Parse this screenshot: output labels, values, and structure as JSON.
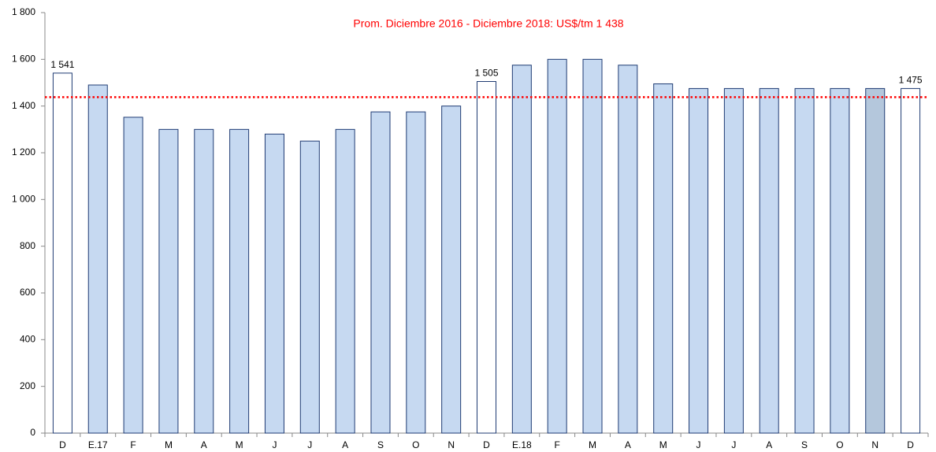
{
  "chart_data": {
    "type": "bar",
    "title": "Prom. Diciembre 2016 - Diciembre 2018: US$/tm 1 438",
    "title_color": "#ff0000",
    "average": 1438,
    "average_color": "#ff0000",
    "categories": [
      "D",
      "E.17",
      "F",
      "M",
      "A",
      "M",
      "J",
      "J",
      "A",
      "S",
      "O",
      "N",
      "D",
      "E.18",
      "F",
      "M",
      "A",
      "M",
      "J",
      "J",
      "A",
      "S",
      "O",
      "N",
      "D"
    ],
    "values": [
      1541,
      1490,
      1352,
      1300,
      1300,
      1300,
      1280,
      1250,
      1300,
      1375,
      1375,
      1400,
      1505,
      1575,
      1600,
      1600,
      1575,
      1495,
      1475,
      1475,
      1475,
      1475,
      1475,
      1475,
      1475
    ],
    "value_labels": [
      "1 541",
      null,
      null,
      null,
      null,
      null,
      null,
      null,
      null,
      null,
      null,
      null,
      "1 505",
      null,
      null,
      null,
      null,
      null,
      null,
      null,
      null,
      null,
      null,
      null,
      "1 475"
    ],
    "colors": [
      "#ffffff",
      "#c6d9f1",
      "#c6d9f1",
      "#c6d9f1",
      "#c6d9f1",
      "#c6d9f1",
      "#c6d9f1",
      "#c6d9f1",
      "#c6d9f1",
      "#c6d9f1",
      "#c6d9f1",
      "#c6d9f1",
      "#ffffff",
      "#c6d9f1",
      "#c6d9f1",
      "#c6d9f1",
      "#c6d9f1",
      "#c6d9f1",
      "#c6d9f1",
      "#c6d9f1",
      "#c6d9f1",
      "#c6d9f1",
      "#c6d9f1",
      "#b4c7dc",
      "#ffffff"
    ],
    "edge_color": "#1f3b73",
    "ylim": [
      0,
      1800
    ],
    "yticks": [
      0,
      200,
      400,
      600,
      800,
      {
        "value": 1000,
        "label": "1 000"
      },
      {
        "value": 1200,
        "label": "1 200"
      },
      {
        "value": 1400,
        "label": "1 400"
      },
      {
        "value": 1600,
        "label": "1 600"
      },
      {
        "value": 1800,
        "label": "1 800"
      }
    ]
  }
}
